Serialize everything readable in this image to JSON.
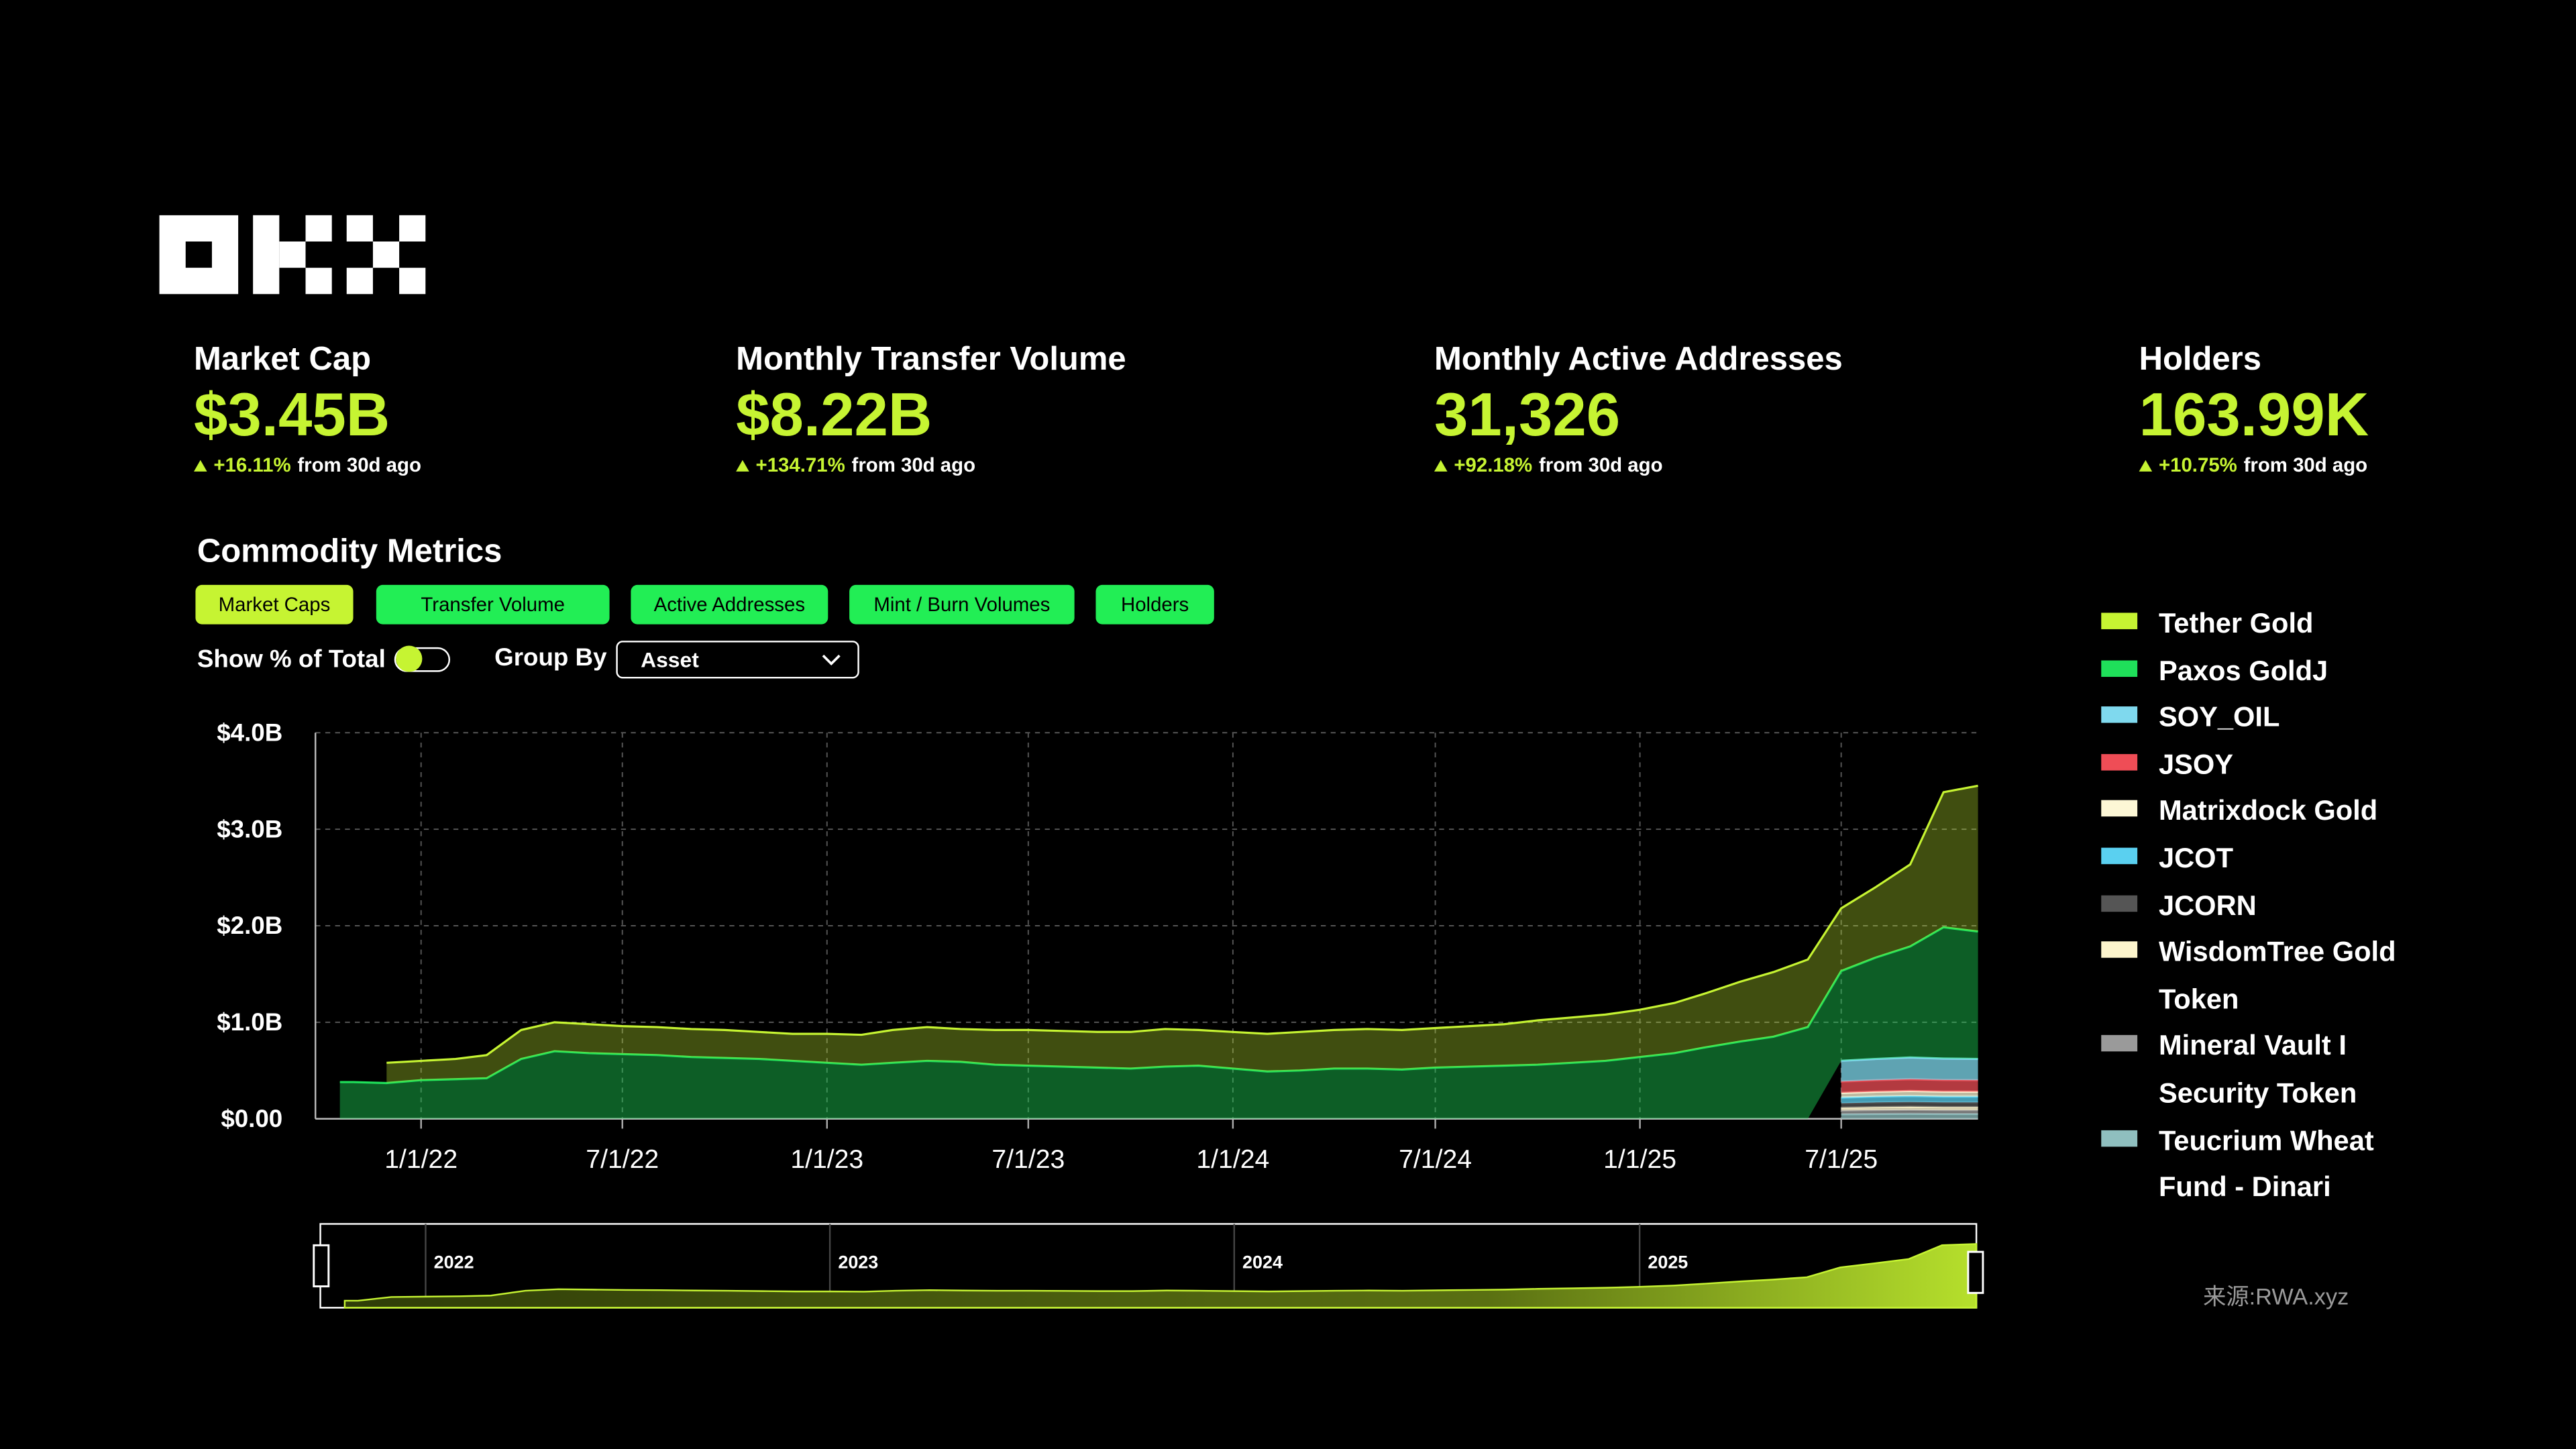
{
  "header": {
    "kpis": [
      {
        "label": "Market Cap",
        "value": "$3.45B",
        "change": "+16.11%",
        "note": "from 30d ago"
      },
      {
        "label": "Monthly Transfer Volume",
        "value": "$8.22B",
        "change": "+134.71%",
        "note": "from 30d ago"
      },
      {
        "label": "Monthly Active Addresses",
        "value": "31,326",
        "change": "+92.18%",
        "note": "from 30d ago"
      },
      {
        "label": "Holders",
        "value": "163.99K",
        "change": "+10.75%",
        "note": "from 30d ago"
      }
    ]
  },
  "section_title": "Commodity Metrics",
  "tabs": [
    "Market Caps",
    "Transfer Volume",
    "Active Addresses",
    "Mint / Burn Volumes",
    "Holders"
  ],
  "controls": {
    "show_percent_label": "Show % of Total",
    "group_by_label": "Group By",
    "group_by_value": "Asset"
  },
  "source": "来源:RWA.xyz",
  "chart_data": {
    "type": "stacked_area",
    "x": [
      "2021-10-20",
      "2021-11-01",
      "2021-12-01",
      "2022-01-01",
      "2022-02-01",
      "2022-03-01",
      "2022-04-01",
      "2022-05-01",
      "2022-06-01",
      "2022-07-01",
      "2022-08-01",
      "2022-09-01",
      "2022-10-01",
      "2022-11-01",
      "2022-12-01",
      "2023-01-01",
      "2023-02-01",
      "2023-03-01",
      "2023-04-01",
      "2023-05-01",
      "2023-06-01",
      "2023-07-01",
      "2023-08-01",
      "2023-09-01",
      "2023-10-01",
      "2023-11-01",
      "2023-12-01",
      "2024-01-01",
      "2024-02-01",
      "2024-03-01",
      "2024-04-01",
      "2024-05-01",
      "2024-06-01",
      "2024-07-01",
      "2024-08-01",
      "2024-09-01",
      "2024-10-01",
      "2024-11-01",
      "2024-12-01",
      "2025-01-01",
      "2025-02-01",
      "2025-03-01",
      "2025-04-01",
      "2025-05-01",
      "2025-06-01",
      "2025-07-01",
      "2025-08-01",
      "2025-09-01",
      "2025-10-01",
      "2025-11-01"
    ],
    "xlim": [
      "2021-09-28",
      "2025-11-01"
    ],
    "xticks": [
      {
        "value": "2022-01-01",
        "label": "1/1/22"
      },
      {
        "value": "2022-07-01",
        "label": "7/1/22"
      },
      {
        "value": "2023-01-01",
        "label": "1/1/23"
      },
      {
        "value": "2023-07-01",
        "label": "7/1/23"
      },
      {
        "value": "2024-01-01",
        "label": "1/1/24"
      },
      {
        "value": "2024-07-01",
        "label": "7/1/24"
      },
      {
        "value": "2025-01-01",
        "label": "1/1/25"
      },
      {
        "value": "2025-07-01",
        "label": "7/1/25"
      }
    ],
    "ylim": [
      0,
      4000000000
    ],
    "yticks": [
      {
        "value": 0,
        "label": "$0.00"
      },
      {
        "value": 1000000000,
        "label": "$1.0B"
      },
      {
        "value": 2000000000,
        "label": "$2.0B"
      },
      {
        "value": 3000000000,
        "label": "$3.0B"
      },
      {
        "value": 4000000000,
        "label": "$4.0B"
      }
    ],
    "grid": true,
    "navigator_ticks": [
      {
        "value": "2022-01-01",
        "label": "2022"
      },
      {
        "value": "2023-01-01",
        "label": "2023"
      },
      {
        "value": "2024-01-01",
        "label": "2024"
      },
      {
        "value": "2025-01-01",
        "label": "2025"
      }
    ],
    "series": [
      {
        "name": "Tether Gold",
        "color": "#c6f432",
        "values": [
          null,
          null,
          210000000,
          200000000,
          210000000,
          240000000,
          300000000,
          300000000,
          300000000,
          290000000,
          290000000,
          290000000,
          290000000,
          280000000,
          280000000,
          300000000,
          310000000,
          340000000,
          350000000,
          340000000,
          360000000,
          370000000,
          370000000,
          370000000,
          380000000,
          390000000,
          370000000,
          380000000,
          390000000,
          400000000,
          400000000,
          410000000,
          410000000,
          410000000,
          420000000,
          430000000,
          460000000,
          470000000,
          480000000,
          490000000,
          520000000,
          560000000,
          620000000,
          670000000,
          700000000,
          650000000,
          730000000,
          850000000,
          1400000000,
          1510000000
        ]
      },
      {
        "name": "Paxos GoldJ",
        "color": "#1fe05a",
        "values": [
          380000000,
          380000000,
          370000000,
          400000000,
          410000000,
          420000000,
          620000000,
          700000000,
          680000000,
          670000000,
          660000000,
          640000000,
          630000000,
          620000000,
          600000000,
          580000000,
          560000000,
          580000000,
          600000000,
          590000000,
          560000000,
          550000000,
          540000000,
          530000000,
          520000000,
          540000000,
          550000000,
          520000000,
          490000000,
          500000000,
          520000000,
          520000000,
          510000000,
          530000000,
          540000000,
          550000000,
          560000000,
          580000000,
          600000000,
          640000000,
          680000000,
          740000000,
          800000000,
          850000000,
          950000000,
          930000000,
          1050000000,
          1150000000,
          1360000000,
          1320000000
        ]
      },
      {
        "name": "SOY_OIL",
        "color": "#7fd9ee",
        "values": [
          null,
          null,
          null,
          null,
          null,
          null,
          null,
          null,
          null,
          null,
          null,
          null,
          null,
          null,
          null,
          null,
          null,
          null,
          null,
          null,
          null,
          null,
          null,
          null,
          null,
          null,
          null,
          null,
          null,
          null,
          null,
          null,
          null,
          null,
          null,
          null,
          null,
          null,
          null,
          null,
          null,
          null,
          null,
          null,
          null,
          215000000,
          220000000,
          225000000,
          222000000,
          220000000
        ]
      },
      {
        "name": "JSOY",
        "color": "#ef4d56",
        "values": [
          null,
          null,
          null,
          null,
          null,
          null,
          null,
          null,
          null,
          null,
          null,
          null,
          null,
          null,
          null,
          null,
          null,
          null,
          null,
          null,
          null,
          null,
          null,
          null,
          null,
          null,
          null,
          null,
          null,
          null,
          null,
          null,
          null,
          null,
          null,
          null,
          null,
          null,
          null,
          null,
          null,
          null,
          null,
          null,
          null,
          118000000,
          120000000,
          122000000,
          121000000,
          120000000
        ]
      },
      {
        "name": "Matrixdock Gold",
        "color": "#fdf7d6",
        "values": [
          null,
          null,
          null,
          null,
          null,
          null,
          null,
          null,
          null,
          null,
          null,
          null,
          null,
          null,
          null,
          null,
          null,
          null,
          null,
          null,
          null,
          null,
          null,
          null,
          null,
          null,
          null,
          null,
          null,
          null,
          null,
          null,
          null,
          null,
          null,
          null,
          null,
          null,
          null,
          null,
          null,
          null,
          null,
          null,
          null,
          48000000,
          50000000,
          52000000,
          51000000,
          50000000
        ]
      },
      {
        "name": "JCOT",
        "color": "#5ad0f0",
        "values": [
          null,
          null,
          null,
          null,
          null,
          null,
          null,
          null,
          null,
          null,
          null,
          null,
          null,
          null,
          null,
          null,
          null,
          null,
          null,
          null,
          null,
          null,
          null,
          null,
          null,
          null,
          null,
          null,
          null,
          null,
          null,
          null,
          null,
          null,
          null,
          null,
          null,
          null,
          null,
          null,
          null,
          null,
          null,
          null,
          null,
          58000000,
          60000000,
          61000000,
          60000000,
          60000000
        ]
      },
      {
        "name": "JCORN",
        "color": "#555555",
        "values": [
          null,
          null,
          null,
          null,
          null,
          null,
          null,
          null,
          null,
          null,
          null,
          null,
          null,
          null,
          null,
          null,
          null,
          null,
          null,
          null,
          null,
          null,
          null,
          null,
          null,
          null,
          null,
          null,
          null,
          null,
          null,
          null,
          null,
          null,
          null,
          null,
          null,
          null,
          null,
          null,
          null,
          null,
          null,
          null,
          null,
          48000000,
          50000000,
          51000000,
          50000000,
          50000000
        ]
      },
      {
        "name": "WisdomTree Gold Token",
        "color": "#fdf5cc",
        "values": [
          null,
          null,
          null,
          null,
          null,
          null,
          null,
          null,
          null,
          null,
          null,
          null,
          null,
          null,
          null,
          null,
          null,
          null,
          null,
          null,
          null,
          null,
          null,
          null,
          null,
          null,
          null,
          null,
          null,
          null,
          null,
          null,
          null,
          null,
          null,
          null,
          null,
          null,
          null,
          null,
          null,
          null,
          null,
          null,
          null,
          28000000,
          30000000,
          31000000,
          30000000,
          30000000
        ]
      },
      {
        "name": "Mineral Vault I Security Token",
        "color": "#9a9a9a",
        "values": [
          null,
          null,
          null,
          null,
          null,
          null,
          null,
          null,
          null,
          null,
          null,
          null,
          null,
          null,
          null,
          null,
          null,
          null,
          null,
          null,
          null,
          null,
          null,
          null,
          null,
          null,
          null,
          null,
          null,
          null,
          null,
          null,
          null,
          null,
          null,
          null,
          null,
          null,
          null,
          null,
          null,
          null,
          null,
          null,
          null,
          38000000,
          40000000,
          41000000,
          40000000,
          40000000
        ]
      },
      {
        "name": "Teucrium Wheat Fund - Dinari",
        "color": "#8fbfbf",
        "values": [
          null,
          null,
          null,
          null,
          null,
          null,
          null,
          null,
          null,
          null,
          null,
          null,
          null,
          null,
          null,
          null,
          null,
          null,
          null,
          null,
          null,
          null,
          null,
          null,
          null,
          null,
          null,
          null,
          null,
          null,
          null,
          null,
          null,
          null,
          null,
          null,
          null,
          null,
          null,
          null,
          null,
          null,
          null,
          null,
          null,
          48000000,
          50000000,
          52000000,
          50000000,
          50000000
        ]
      }
    ]
  }
}
